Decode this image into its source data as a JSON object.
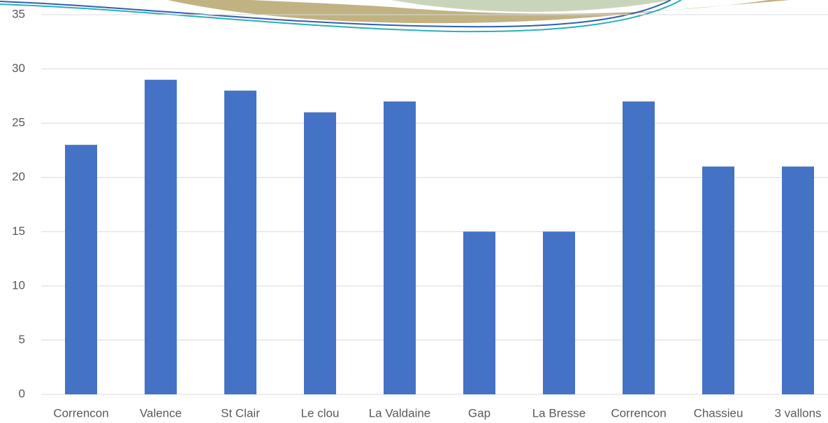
{
  "chart_data": {
    "type": "bar",
    "categories": [
      "Correncon",
      "Valence",
      "St Clair",
      "Le clou",
      "La Valdaine",
      "Gap",
      "La Bresse",
      "Correncon",
      "Chassieu",
      "3 vallons"
    ],
    "values": [
      23,
      29,
      28,
      26,
      27,
      15,
      15,
      27,
      21,
      21
    ],
    "color": "#4472c4",
    "ylim": [
      0,
      35
    ],
    "yticks": [
      0,
      5,
      10,
      15,
      20,
      25,
      30,
      35
    ],
    "grid": true
  }
}
